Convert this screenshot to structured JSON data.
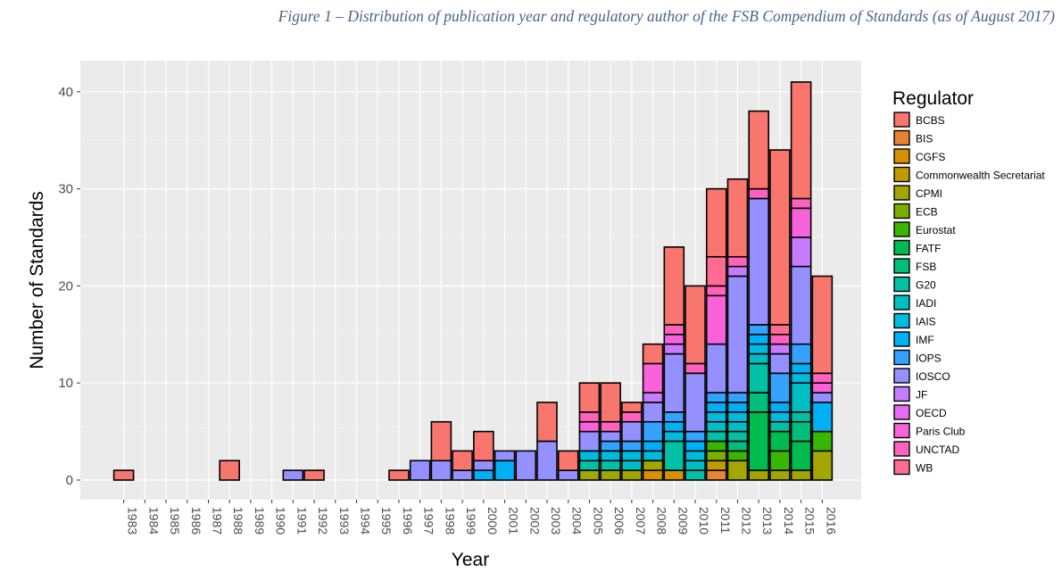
{
  "figure_caption": "Figure 1 – Distribution of publication year and regulatory author of the FSB Compendium of Standards (as of August 2017)",
  "chart_data": {
    "type": "bar",
    "stacked": true,
    "xlabel": "Year",
    "ylabel": "Number of Standards",
    "ylim": [
      0,
      43
    ],
    "yticks": [
      0,
      10,
      20,
      30,
      40
    ],
    "grid": true,
    "legend_title": "Regulator",
    "legend_position": "right",
    "categories": [
      "1983",
      "1984",
      "1985",
      "1986",
      "1987",
      "1988",
      "1989",
      "1990",
      "1991",
      "1992",
      "1993",
      "1994",
      "1995",
      "1996",
      "1997",
      "1998",
      "1999",
      "2000",
      "2001",
      "2002",
      "2003",
      "2004",
      "2005",
      "2006",
      "2007",
      "2008",
      "2009",
      "2010",
      "2011",
      "2012",
      "2013",
      "2014",
      "2015",
      "2016"
    ],
    "series": [
      {
        "name": "BCBS",
        "color": "#F8766D",
        "values": [
          0,
          0,
          0,
          0,
          0,
          0,
          0,
          0,
          0,
          0,
          0,
          0,
          0,
          0,
          0,
          0,
          0,
          0,
          0,
          0,
          0,
          0,
          0,
          0,
          0,
          0,
          0,
          0,
          0,
          0,
          0,
          0,
          0,
          0
        ]
      },
      {
        "name": "BIS",
        "color": "#EA8331",
        "values": [
          0,
          0,
          0,
          0,
          0,
          0,
          0,
          0,
          0,
          0,
          0,
          0,
          0,
          0,
          0,
          0,
          0,
          0,
          0,
          0,
          0,
          0,
          0,
          0,
          0,
          0,
          0,
          0,
          1,
          0,
          0,
          0,
          0,
          0
        ]
      },
      {
        "name": "CGFS",
        "color": "#D89000",
        "values": [
          0,
          0,
          0,
          0,
          0,
          0,
          0,
          0,
          0,
          0,
          0,
          0,
          0,
          0,
          0,
          0,
          0,
          0,
          0,
          0,
          0,
          0,
          0,
          0,
          0,
          1,
          1,
          0,
          0,
          0,
          0,
          0,
          0,
          0
        ]
      },
      {
        "name": "Commonwealth Secretariat",
        "color": "#C09B00",
        "values": [
          0,
          0,
          0,
          0,
          0,
          0,
          0,
          0,
          0,
          0,
          0,
          0,
          0,
          0,
          0,
          0,
          0,
          0,
          0,
          0,
          0,
          0,
          0,
          0,
          0,
          0,
          0,
          0,
          1,
          0,
          0,
          0,
          0,
          0
        ]
      },
      {
        "name": "CPMI",
        "color": "#A3A500",
        "values": [
          0,
          0,
          0,
          0,
          0,
          0,
          0,
          0,
          0,
          0,
          0,
          0,
          0,
          0,
          0,
          0,
          0,
          0,
          0,
          0,
          0,
          0,
          1,
          1,
          1,
          1,
          0,
          0,
          0,
          2,
          1,
          1,
          1,
          3
        ]
      },
      {
        "name": "ECB",
        "color": "#7CAE00",
        "values": [
          0,
          0,
          0,
          0,
          0,
          0,
          0,
          0,
          0,
          0,
          0,
          0,
          0,
          0,
          0,
          0,
          0,
          0,
          0,
          0,
          0,
          0,
          0,
          0,
          0,
          0,
          0,
          0,
          1,
          0,
          0,
          0,
          0,
          0
        ]
      },
      {
        "name": "Eurostat",
        "color": "#39B600",
        "values": [
          0,
          0,
          0,
          0,
          0,
          0,
          0,
          0,
          0,
          0,
          0,
          0,
          0,
          0,
          0,
          0,
          0,
          0,
          0,
          0,
          0,
          0,
          0,
          0,
          0,
          0,
          0,
          0,
          1,
          1,
          0,
          2,
          0,
          2
        ]
      },
      {
        "name": "FATF",
        "color": "#00BB4E",
        "values": [
          0,
          0,
          0,
          0,
          0,
          0,
          0,
          0,
          0,
          0,
          0,
          0,
          0,
          0,
          0,
          0,
          0,
          0,
          0,
          0,
          0,
          0,
          0,
          0,
          0,
          0,
          0,
          0,
          0,
          0,
          6,
          2,
          3,
          0
        ]
      },
      {
        "name": "FSB",
        "color": "#00BF7D",
        "values": [
          0,
          0,
          0,
          0,
          0,
          0,
          0,
          0,
          0,
          0,
          0,
          0,
          0,
          0,
          0,
          0,
          0,
          0,
          0,
          0,
          0,
          0,
          0,
          0,
          0,
          0,
          0,
          0,
          0,
          1,
          2,
          0,
          2,
          0
        ]
      },
      {
        "name": "G20",
        "color": "#00C1A3",
        "values": [
          0,
          0,
          0,
          0,
          0,
          0,
          0,
          0,
          0,
          0,
          0,
          0,
          0,
          0,
          0,
          0,
          0,
          0,
          0,
          0,
          0,
          0,
          1,
          1,
          0,
          0,
          3,
          1,
          1,
          1,
          3,
          1,
          1,
          0
        ]
      },
      {
        "name": "IADI",
        "color": "#00BFC4",
        "values": [
          0,
          0,
          0,
          0,
          0,
          0,
          0,
          0,
          0,
          0,
          0,
          0,
          0,
          0,
          0,
          0,
          0,
          0,
          0,
          0,
          0,
          0,
          0,
          0,
          1,
          0,
          0,
          1,
          1,
          1,
          1,
          0,
          3,
          0
        ]
      },
      {
        "name": "IAIS",
        "color": "#00BAE0",
        "values": [
          0,
          0,
          0,
          0,
          0,
          0,
          0,
          0,
          0,
          0,
          0,
          0,
          0,
          0,
          0,
          0,
          0,
          0,
          0,
          0,
          0,
          0,
          1,
          1,
          1,
          1,
          1,
          1,
          1,
          1,
          1,
          1,
          1,
          0
        ]
      },
      {
        "name": "IMF",
        "color": "#00B0F6",
        "values": [
          0,
          0,
          0,
          0,
          0,
          0,
          0,
          0,
          0,
          0,
          0,
          0,
          0,
          0,
          0,
          0,
          0,
          1,
          2,
          0,
          0,
          0,
          0,
          0,
          0,
          1,
          1,
          1,
          1,
          1,
          1,
          1,
          1,
          3
        ]
      },
      {
        "name": "IOPS",
        "color": "#35A2FF",
        "values": [
          0,
          0,
          0,
          0,
          0,
          0,
          0,
          0,
          0,
          0,
          0,
          0,
          0,
          0,
          0,
          0,
          0,
          0,
          0,
          0,
          0,
          0,
          0,
          1,
          1,
          2,
          1,
          1,
          1,
          1,
          1,
          3,
          2,
          0
        ]
      },
      {
        "name": "IOSCO",
        "color": "#9590FF",
        "values": [
          0,
          0,
          0,
          0,
          0,
          0,
          0,
          0,
          1,
          0,
          0,
          0,
          0,
          0,
          2,
          2,
          1,
          1,
          1,
          3,
          4,
          1,
          2,
          1,
          2,
          2,
          6,
          6,
          5,
          12,
          13,
          2,
          8,
          1
        ]
      },
      {
        "name": "JF",
        "color": "#C77CFF",
        "values": [
          0,
          0,
          0,
          0,
          0,
          0,
          0,
          0,
          0,
          0,
          0,
          0,
          0,
          0,
          0,
          0,
          0,
          0,
          0,
          0,
          0,
          0,
          0,
          0,
          0,
          1,
          1,
          0,
          0,
          1,
          0,
          1,
          3,
          0
        ]
      },
      {
        "name": "OECD",
        "color": "#E76BF3",
        "values": [
          0,
          0,
          0,
          0,
          0,
          0,
          0,
          0,
          0,
          0,
          0,
          0,
          0,
          0,
          0,
          0,
          0,
          0,
          0,
          0,
          0,
          0,
          0,
          0,
          0,
          0,
          0,
          0,
          0,
          0,
          0,
          0,
          0,
          0
        ]
      },
      {
        "name": "Paris Club",
        "color": "#FA62DB",
        "values": [
          0,
          0,
          0,
          0,
          0,
          0,
          0,
          0,
          0,
          0,
          0,
          0,
          0,
          0,
          0,
          0,
          0,
          0,
          0,
          0,
          0,
          0,
          1,
          0,
          0,
          3,
          1,
          0,
          5,
          0,
          0,
          0,
          3,
          1
        ]
      },
      {
        "name": "UNCTAD",
        "color": "#FF62BC",
        "values": [
          0,
          0,
          0,
          0,
          0,
          0,
          0,
          0,
          0,
          0,
          0,
          0,
          0,
          0,
          0,
          0,
          0,
          0,
          0,
          0,
          0,
          0,
          1,
          1,
          1,
          0,
          1,
          1,
          1,
          1,
          1,
          1,
          1,
          1
        ]
      },
      {
        "name": "WB",
        "color": "#FF6C91",
        "values": [
          0,
          0,
          0,
          0,
          0,
          0,
          0,
          0,
          0,
          0,
          0,
          0,
          0,
          0,
          0,
          0,
          0,
          0,
          0,
          0,
          0,
          0,
          0,
          0,
          0,
          0,
          0,
          0,
          3,
          0,
          0,
          1,
          0,
          0
        ]
      },
      {
        "name": "",
        "color": "#F8766D",
        "values": [
          1,
          0,
          0,
          0,
          0,
          2,
          0,
          0,
          0,
          1,
          0,
          0,
          0,
          1,
          0,
          4,
          2,
          3,
          0,
          0,
          4,
          2,
          3,
          4,
          1,
          2,
          8,
          8,
          7,
          8,
          8,
          18,
          12,
          10
        ]
      }
    ]
  }
}
